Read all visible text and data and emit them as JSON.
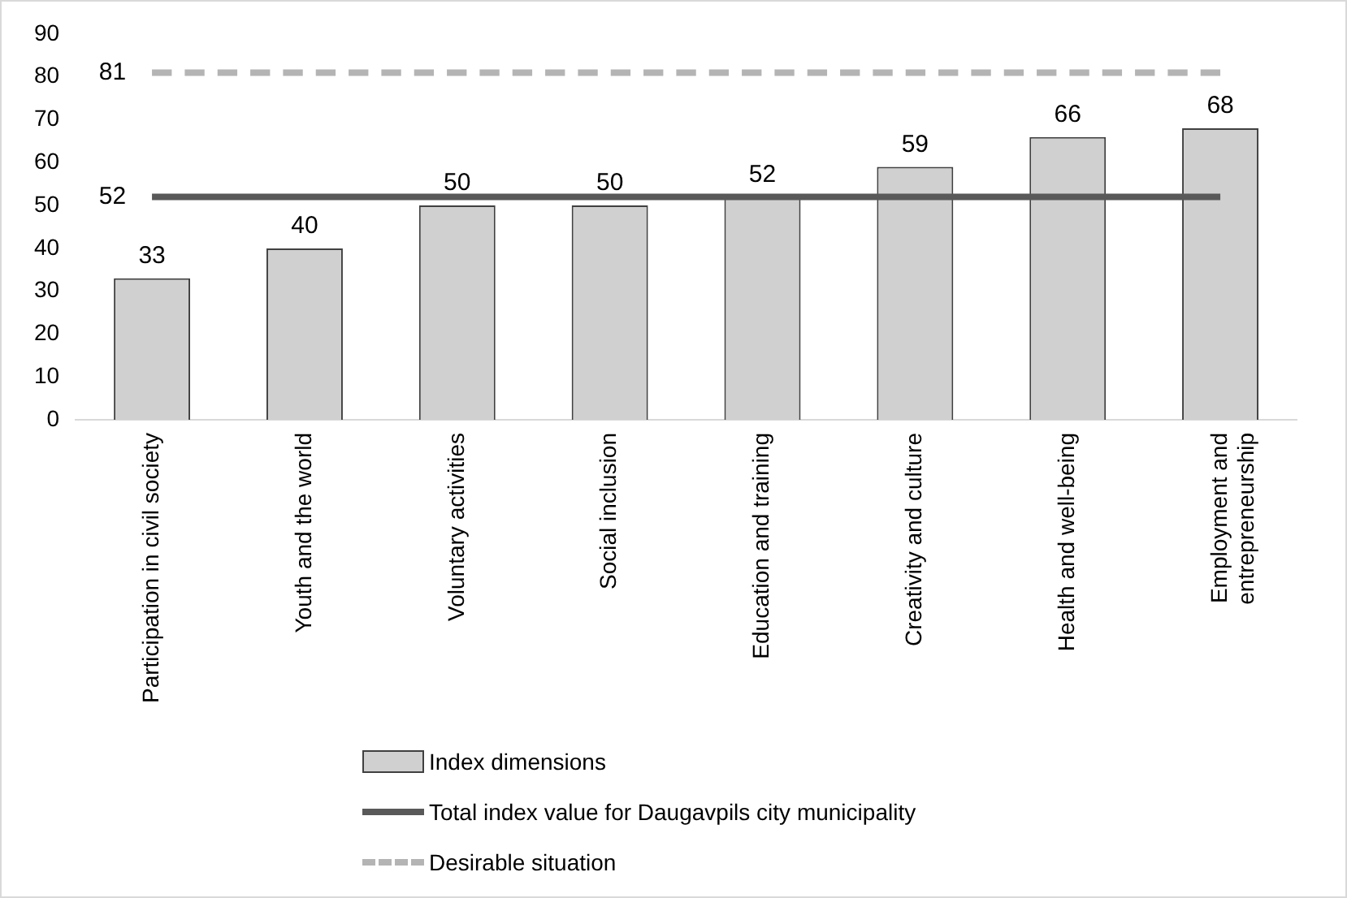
{
  "chart_data": {
    "type": "bar",
    "categories": [
      "Participation in civil society",
      "Youth and the world",
      "Voluntary activities",
      "Social inclusion",
      "Education and training",
      "Creativity and culture",
      "Health and well-being",
      "Employment and entrepreneurship"
    ],
    "series": [
      {
        "name": "Index dimensions",
        "color": "#d0d0d0",
        "values": [
          33,
          40,
          50,
          50,
          52,
          59,
          66,
          68
        ]
      },
      {
        "name": "Total index value for Daugavpils city municipality",
        "type": "line",
        "color": "#595959",
        "line_style": "solid",
        "values": [
          52,
          52,
          52,
          52,
          52,
          52,
          52,
          52
        ],
        "value_labels": [
          "52",
          null,
          null,
          null,
          null,
          null,
          null,
          null
        ]
      },
      {
        "name": "Desirable situation",
        "type": "line",
        "color": "#b4b4b4",
        "line_style": "dashed",
        "values": [
          81,
          81,
          81,
          81,
          81,
          81,
          81,
          81
        ],
        "value_labels": [
          "81",
          null,
          null,
          null,
          null,
          null,
          null,
          null
        ]
      }
    ],
    "ylim": [
      0,
      90
    ],
    "yticks": [
      0,
      10,
      20,
      30,
      40,
      50,
      60,
      70,
      80,
      90
    ],
    "grid": false,
    "legend": "bottom",
    "data_labels": true,
    "marker": "none"
  }
}
